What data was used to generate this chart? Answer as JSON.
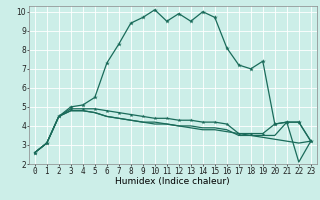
{
  "title": "",
  "xlabel": "Humidex (Indice chaleur)",
  "bg_color": "#cceee8",
  "grid_color": "#ffffff",
  "line_color": "#1a6b5a",
  "xlim": [
    -0.5,
    23.5
  ],
  "ylim": [
    2,
    10.3
  ],
  "xticks": [
    0,
    1,
    2,
    3,
    4,
    5,
    6,
    7,
    8,
    9,
    10,
    11,
    12,
    13,
    14,
    15,
    16,
    17,
    18,
    19,
    20,
    21,
    22,
    23
  ],
  "yticks": [
    2,
    3,
    4,
    5,
    6,
    7,
    8,
    9,
    10
  ],
  "series": {
    "line1": [
      2.6,
      3.1,
      4.5,
      5.0,
      5.1,
      5.5,
      7.3,
      8.3,
      9.4,
      9.7,
      10.1,
      9.5,
      9.9,
      9.5,
      10.0,
      9.7,
      8.1,
      7.2,
      7.0,
      7.4,
      4.1,
      4.2,
      4.2,
      3.2
    ],
    "line2": [
      2.6,
      3.1,
      4.5,
      4.9,
      4.9,
      4.9,
      4.8,
      4.7,
      4.6,
      4.5,
      4.4,
      4.4,
      4.3,
      4.3,
      4.2,
      4.2,
      4.1,
      3.6,
      3.6,
      3.6,
      4.1,
      4.2,
      4.2,
      3.2
    ],
    "line3": [
      2.6,
      3.1,
      4.5,
      4.8,
      4.8,
      4.7,
      4.5,
      4.4,
      4.3,
      4.2,
      4.2,
      4.1,
      4.0,
      4.0,
      3.9,
      3.9,
      3.8,
      3.5,
      3.5,
      3.5,
      3.5,
      4.2,
      2.1,
      3.2
    ],
    "line4": [
      2.6,
      3.1,
      4.5,
      4.8,
      4.8,
      4.7,
      4.5,
      4.4,
      4.3,
      4.2,
      4.1,
      4.1,
      4.0,
      3.9,
      3.8,
      3.8,
      3.7,
      3.6,
      3.5,
      3.4,
      3.3,
      3.2,
      3.1,
      3.2
    ]
  },
  "marker_indices1": [
    0,
    1,
    2,
    3,
    4,
    5,
    6,
    7,
    8,
    9,
    10,
    11,
    12,
    13,
    14,
    15,
    16,
    17,
    18,
    19,
    20,
    21,
    22,
    23
  ],
  "marker_indices2": [
    0,
    1,
    2,
    3,
    19,
    20,
    21,
    22,
    23
  ],
  "xlabel_fontsize": 6.5,
  "tick_fontsize": 5.5
}
